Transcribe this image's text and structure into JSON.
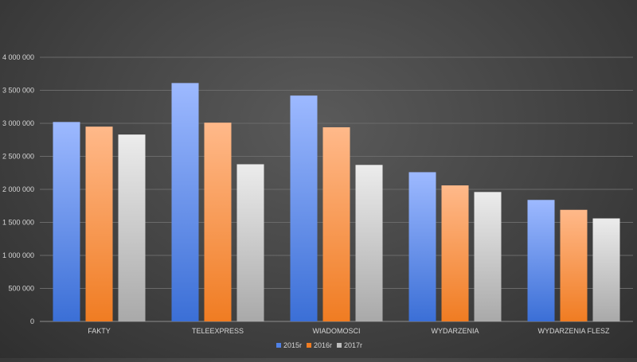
{
  "chart_data": {
    "type": "bar",
    "categories": [
      "FAKTY",
      "TELEEXPRESS",
      "WIADOMOSCI",
      "WYDARZENIA",
      "WYDARZENIA FLESZ"
    ],
    "series": [
      {
        "name": "2015r",
        "values": [
          3020000,
          3610000,
          3420000,
          2260000,
          1840000
        ]
      },
      {
        "name": "2016r",
        "values": [
          2950000,
          3010000,
          2940000,
          2060000,
          1690000
        ]
      },
      {
        "name": "2017r",
        "values": [
          2830000,
          2380000,
          2370000,
          1960000,
          1560000
        ]
      }
    ],
    "title": "",
    "xlabel": "",
    "ylabel": "",
    "ylim": [
      0,
      4000000
    ],
    "ytick_labels": [
      "0",
      "500 000",
      "1 000 000",
      "1 500 000",
      "2 000 000",
      "2 500 000",
      "3 000 000",
      "3 500 000",
      "4 000 000"
    ],
    "grid": true,
    "legend": "bottom",
    "colors": {
      "2015r": [
        "#9db9ff",
        "#3b6fd6"
      ],
      "2016r": [
        "#ffb98a",
        "#f07c22"
      ],
      "2017r": [
        "#ececec",
        "#a9a9a9"
      ],
      "legend": [
        "#4f81e6",
        "#f07c22",
        "#bfbfbf"
      ]
    }
  }
}
